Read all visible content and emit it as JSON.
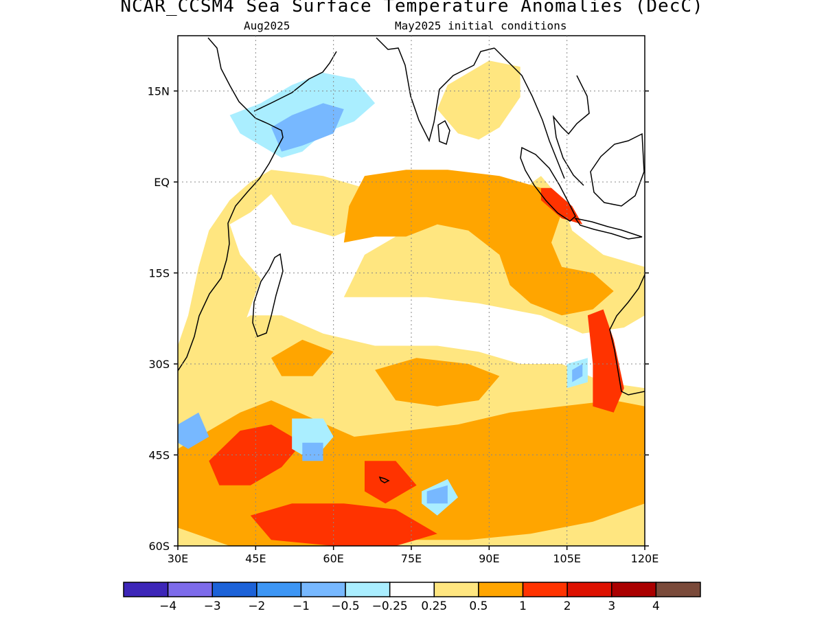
{
  "header": {
    "title": "NCAR_CCSM4 Sea Surface Temperature Anomalies (DecC)",
    "valid_month": "Aug2025",
    "init_label": "May2025 initial conditions"
  },
  "map": {
    "lon_range": [
      30,
      120
    ],
    "lat_range": [
      -60,
      24
    ],
    "x_ticks": [
      {
        "value": 30,
        "label": "30E"
      },
      {
        "value": 45,
        "label": "45E"
      },
      {
        "value": 60,
        "label": "60E"
      },
      {
        "value": 75,
        "label": "75E"
      },
      {
        "value": 90,
        "label": "90E"
      },
      {
        "value": 105,
        "label": "105E"
      },
      {
        "value": 120,
        "label": "120E"
      }
    ],
    "y_ticks": [
      {
        "value": 15,
        "label": "15N"
      },
      {
        "value": 0,
        "label": "EQ"
      },
      {
        "value": -15,
        "label": "15S"
      },
      {
        "value": -30,
        "label": "30S"
      },
      {
        "value": -45,
        "label": "45S"
      },
      {
        "value": -60,
        "label": "60S"
      }
    ],
    "grid": true,
    "anomaly_regions": [
      {
        "level": "0.5",
        "color": "#ffe680",
        "lonlat": [
          [
            62,
            -19
          ],
          [
            66,
            -12
          ],
          [
            72,
            -9
          ],
          [
            78,
            -7
          ],
          [
            86,
            -6
          ],
          [
            92,
            -4
          ],
          [
            100,
            1
          ],
          [
            104,
            -3
          ],
          [
            106,
            -8
          ],
          [
            112,
            -12
          ],
          [
            120,
            -14
          ],
          [
            120,
            -22
          ],
          [
            116,
            -24
          ],
          [
            108,
            -25
          ],
          [
            100,
            -22
          ],
          [
            94,
            -21
          ],
          [
            88,
            -20
          ],
          [
            78,
            -19
          ],
          [
            70,
            -19
          ]
        ]
      },
      {
        "level": "0.5",
        "color": "#ffe680",
        "lonlat": [
          [
            30,
            -30
          ],
          [
            36,
            -26
          ],
          [
            44,
            -22
          ],
          [
            50,
            -22
          ],
          [
            58,
            -25
          ],
          [
            68,
            -27
          ],
          [
            80,
            -27
          ],
          [
            88,
            -28
          ],
          [
            96,
            -30
          ],
          [
            104,
            -30
          ],
          [
            112,
            -33
          ],
          [
            120,
            -34
          ],
          [
            120,
            -60
          ],
          [
            30,
            -60
          ]
        ]
      },
      {
        "level": "0.5",
        "color": "#ffe680",
        "lonlat": [
          [
            30,
            -32
          ],
          [
            40,
            -27
          ],
          [
            43,
            -23
          ],
          [
            46,
            -16
          ],
          [
            42,
            -12
          ],
          [
            40,
            -7
          ],
          [
            44,
            -5
          ],
          [
            48,
            -2
          ],
          [
            52,
            -7
          ],
          [
            60,
            -9
          ],
          [
            66,
            -7
          ],
          [
            70,
            -4
          ],
          [
            66,
            -1
          ],
          [
            58,
            1
          ],
          [
            48,
            2
          ],
          [
            44,
            0
          ],
          [
            40,
            -3
          ],
          [
            36,
            -8
          ],
          [
            34,
            -14
          ],
          [
            32,
            -22
          ],
          [
            30,
            -27
          ]
        ]
      },
      {
        "level": "0.5",
        "color": "#ffe680",
        "lonlat": [
          [
            84,
            8
          ],
          [
            80,
            12
          ],
          [
            82,
            16
          ],
          [
            86,
            18
          ],
          [
            90,
            20
          ],
          [
            96,
            19
          ],
          [
            96,
            14
          ],
          [
            92,
            9
          ],
          [
            88,
            7
          ]
        ]
      },
      {
        "level": "1",
        "color": "#ffa500",
        "lonlat": [
          [
            62,
            -10
          ],
          [
            63,
            -4
          ],
          [
            66,
            1
          ],
          [
            74,
            2
          ],
          [
            82,
            2
          ],
          [
            92,
            1
          ],
          [
            100,
            -1
          ],
          [
            104,
            -5
          ],
          [
            102,
            -10
          ],
          [
            104,
            -14
          ],
          [
            110,
            -15
          ],
          [
            114,
            -18
          ],
          [
            110,
            -21
          ],
          [
            104,
            -22
          ],
          [
            98,
            -20
          ],
          [
            94,
            -17
          ],
          [
            92,
            -12
          ],
          [
            86,
            -8
          ],
          [
            80,
            -7
          ],
          [
            74,
            -9
          ],
          [
            68,
            -9
          ]
        ]
      },
      {
        "level": "1",
        "color": "#ffa500",
        "lonlat": [
          [
            42,
            -38
          ],
          [
            48,
            -36
          ],
          [
            56,
            -39
          ],
          [
            64,
            -42
          ],
          [
            74,
            -41
          ],
          [
            84,
            -40
          ],
          [
            94,
            -38
          ],
          [
            104,
            -37
          ],
          [
            114,
            -36
          ],
          [
            120,
            -37
          ],
          [
            120,
            -53
          ],
          [
            110,
            -56
          ],
          [
            98,
            -58
          ],
          [
            86,
            -59
          ],
          [
            74,
            -59
          ],
          [
            62,
            -60
          ],
          [
            50,
            -60
          ],
          [
            40,
            -60
          ],
          [
            30,
            -57
          ],
          [
            30,
            -44
          ]
        ]
      },
      {
        "level": "1",
        "color": "#ffa500",
        "lonlat": [
          [
            48,
            -29
          ],
          [
            54,
            -26
          ],
          [
            60,
            -28
          ],
          [
            56,
            -32
          ],
          [
            50,
            -32
          ]
        ]
      },
      {
        "level": "1",
        "color": "#ffa500",
        "lonlat": [
          [
            68,
            -31
          ],
          [
            76,
            -29
          ],
          [
            86,
            -30
          ],
          [
            92,
            -32
          ],
          [
            88,
            -36
          ],
          [
            80,
            -37
          ],
          [
            72,
            -36
          ]
        ]
      },
      {
        "level": "2",
        "color": "#ff3300",
        "lonlat": [
          [
            36,
            -46
          ],
          [
            42,
            -41
          ],
          [
            48,
            -40
          ],
          [
            54,
            -43
          ],
          [
            50,
            -47
          ],
          [
            44,
            -50
          ],
          [
            38,
            -50
          ]
        ]
      },
      {
        "level": "2",
        "color": "#ff3300",
        "lonlat": [
          [
            44,
            -55
          ],
          [
            52,
            -53
          ],
          [
            62,
            -53
          ],
          [
            72,
            -54
          ],
          [
            80,
            -58
          ],
          [
            72,
            -60
          ],
          [
            60,
            -60
          ],
          [
            48,
            -59
          ]
        ]
      },
      {
        "level": "2",
        "color": "#ff3300",
        "lonlat": [
          [
            66,
            -46
          ],
          [
            72,
            -46
          ],
          [
            76,
            -50
          ],
          [
            70,
            -53
          ],
          [
            66,
            -51
          ]
        ]
      },
      {
        "level": "2",
        "color": "#ff3300",
        "lonlat": [
          [
            109,
            -22
          ],
          [
            112,
            -21
          ],
          [
            114,
            -26
          ],
          [
            116,
            -34
          ],
          [
            114,
            -38
          ],
          [
            110,
            -37
          ],
          [
            110,
            -30
          ]
        ]
      },
      {
        "level": "2",
        "color": "#ff3300",
        "lonlat": [
          [
            100,
            -1
          ],
          [
            102,
            -1
          ],
          [
            106,
            -4
          ],
          [
            108,
            -7
          ],
          [
            104,
            -6
          ],
          [
            100,
            -3
          ]
        ]
      },
      {
        "level": "-0.5",
        "color": "#aaeeff",
        "lonlat": [
          [
            40,
            11
          ],
          [
            46,
            13
          ],
          [
            52,
            16
          ],
          [
            58,
            18
          ],
          [
            64,
            17
          ],
          [
            68,
            13
          ],
          [
            64,
            10
          ],
          [
            58,
            8
          ],
          [
            54,
            5
          ],
          [
            50,
            4
          ],
          [
            46,
            6
          ],
          [
            42,
            8
          ]
        ]
      },
      {
        "level": "-0.5",
        "color": "#aaeeff",
        "lonlat": [
          [
            52,
            -39
          ],
          [
            58,
            -39
          ],
          [
            60,
            -42
          ],
          [
            56,
            -46
          ],
          [
            52,
            -44
          ]
        ]
      },
      {
        "level": "-0.5",
        "color": "#aaeeff",
        "lonlat": [
          [
            77,
            -51
          ],
          [
            82,
            -49
          ],
          [
            84,
            -52
          ],
          [
            80,
            -55
          ],
          [
            77,
            -53
          ]
        ]
      },
      {
        "level": "-0.5",
        "color": "#aaeeff",
        "lonlat": [
          [
            105,
            -30
          ],
          [
            109,
            -29
          ],
          [
            109,
            -33
          ],
          [
            105,
            -34
          ]
        ]
      },
      {
        "level": "-1",
        "color": "#77b8ff",
        "lonlat": [
          [
            48,
            9
          ],
          [
            52,
            11
          ],
          [
            58,
            13
          ],
          [
            62,
            12
          ],
          [
            60,
            8
          ],
          [
            54,
            6
          ],
          [
            50,
            5
          ]
        ]
      },
      {
        "level": "-1",
        "color": "#77b8ff",
        "lonlat": [
          [
            30,
            -40
          ],
          [
            34,
            -38
          ],
          [
            36,
            -42
          ],
          [
            32,
            -44
          ],
          [
            30,
            -43
          ]
        ]
      },
      {
        "level": "-1",
        "color": "#77b8ff",
        "lonlat": [
          [
            54,
            -43
          ],
          [
            58,
            -43
          ],
          [
            58,
            -46
          ],
          [
            54,
            -46
          ]
        ]
      },
      {
        "level": "-1",
        "color": "#77b8ff",
        "lonlat": [
          [
            78,
            -51
          ],
          [
            82,
            -50
          ],
          [
            82,
            -53
          ],
          [
            78,
            -53
          ]
        ]
      },
      {
        "level": "-1",
        "color": "#77b8ff",
        "lonlat": [
          [
            106,
            -31
          ],
          [
            108,
            -30
          ],
          [
            108,
            -32
          ],
          [
            106,
            -33
          ]
        ]
      }
    ]
  },
  "colorbar": {
    "colors": [
      "#3d26b8",
      "#7d6bea",
      "#1c62d8",
      "#3d96f5",
      "#77b8ff",
      "#aaeeff",
      "#ffffff",
      "#ffe680",
      "#ffa500",
      "#ff3300",
      "#dd1100",
      "#aa0000",
      "#7a4a3a"
    ],
    "labels": [
      "−4",
      "−3",
      "−2",
      "−1",
      "−0.5",
      "−0.25",
      "0.25",
      "0.5",
      "1",
      "2",
      "3",
      "4"
    ]
  }
}
